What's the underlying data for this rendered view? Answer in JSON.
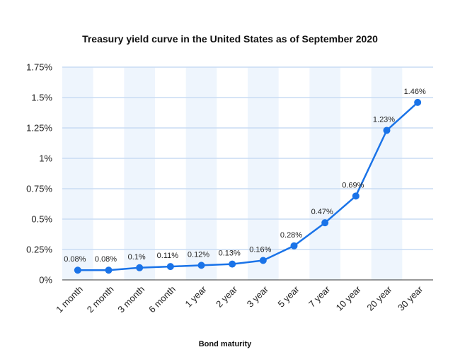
{
  "chart_data": {
    "type": "line",
    "title": "Treasury yield curve in the United States as of September 2020",
    "xlabel": "Bond maturity",
    "ylabel": "",
    "categories": [
      "1 month",
      "2 month",
      "3 month",
      "6 month",
      "1 year",
      "2 year",
      "3 year",
      "5 year",
      "7 year",
      "10 year",
      "20 year",
      "30 year"
    ],
    "series": [
      {
        "values": [
          0.08,
          0.08,
          0.1,
          0.11,
          0.12,
          0.13,
          0.16,
          0.28,
          0.47,
          0.69,
          1.23,
          1.46
        ],
        "data_labels": [
          "0.08%",
          "0.08%",
          "0.1%",
          "0.11%",
          "0.12%",
          "0.13%",
          "0.16%",
          "0.28%",
          "0.47%",
          "0.69%",
          "1.23%",
          "1.46%"
        ]
      }
    ],
    "yticks": [
      0,
      0.25,
      0.5,
      0.75,
      1,
      1.25,
      1.5,
      1.75
    ],
    "ytick_labels": [
      "0%",
      "0.25%",
      "0.5%",
      "0.75%",
      "1%",
      "1.25%",
      "1.5%",
      "1.75%"
    ],
    "ylim": [
      0,
      1.75
    ],
    "grid": true,
    "legend": "none",
    "colors": {
      "line": "#1a73e8",
      "band": "#eef5fd",
      "grid": "#c8dcf3",
      "axis": "#333333"
    }
  }
}
